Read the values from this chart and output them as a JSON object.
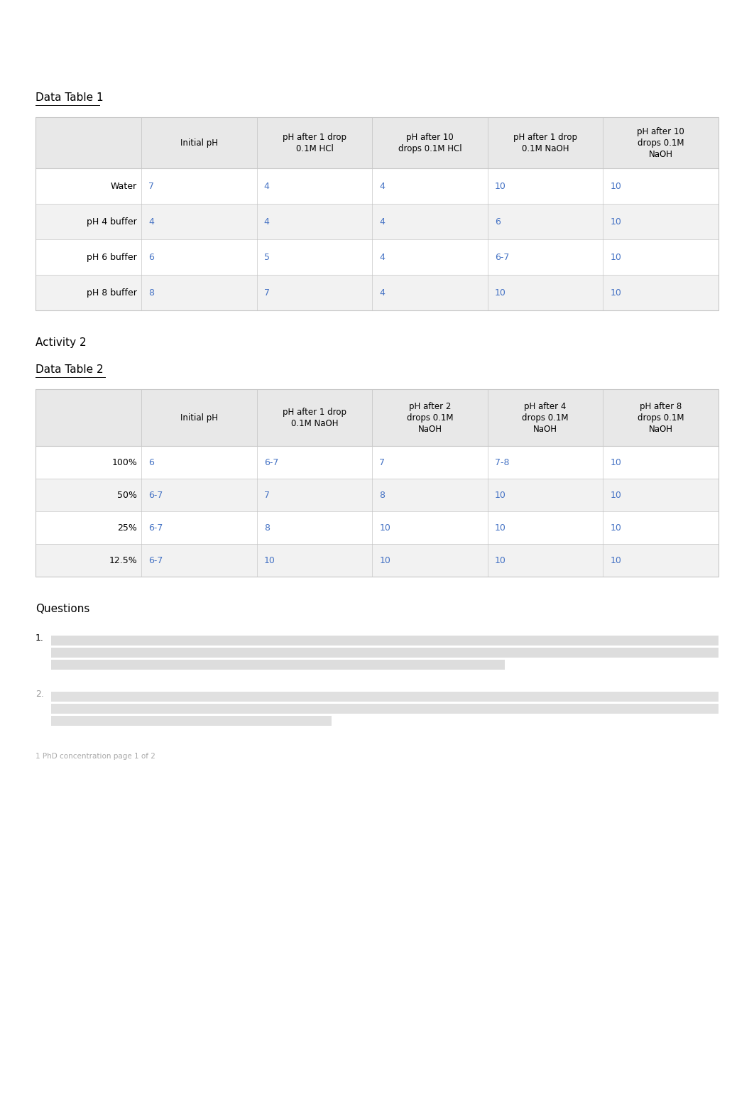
{
  "page_bg": "#ffffff",
  "data_table1_label": "Data Table 1",
  "table1_headers": [
    "",
    "Initial pH",
    "pH after 1 drop\n0.1M HCl",
    "pH after 10\ndrops 0.1M HCl",
    "pH after 1 drop\n0.1M NaOH",
    "pH after 10\ndrops 0.1M\nNaOH"
  ],
  "table1_rows": [
    [
      "Water",
      "7",
      "4",
      "4",
      "10",
      "10"
    ],
    [
      "pH 4 buffer",
      "4",
      "4",
      "4",
      "6",
      "10"
    ],
    [
      "pH 6 buffer",
      "6",
      "5",
      "4",
      "6-7",
      "10"
    ],
    [
      "pH 8 buffer",
      "8",
      "7",
      "4",
      "10",
      "10"
    ]
  ],
  "activity2_label": "Activity 2",
  "data_table2_label": "Data Table 2",
  "table2_headers": [
    "",
    "Initial pH",
    "pH after 1 drop\n0.1M NaOH",
    "pH after 2\ndrops 0.1M\nNaOH",
    "pH after 4\ndrops 0.1M\nNaOH",
    "pH after 8\ndrops 0.1M\nNaOH"
  ],
  "table2_rows": [
    [
      "100%",
      "6",
      "6-7",
      "7",
      "7-8",
      "10"
    ],
    [
      "50%",
      "6-7",
      "7",
      "8",
      "10",
      "10"
    ],
    [
      "25%",
      "6-7",
      "8",
      "10",
      "10",
      "10"
    ],
    [
      "12.5%",
      "6-7",
      "10",
      "10",
      "10",
      "10"
    ]
  ],
  "questions_label": "Questions",
  "q3_text": "1 PhD concentration page 1 of 2",
  "blue_color": "#4472C4",
  "black_color": "#000000",
  "gray_color": "#808080",
  "light_gray_row": "#f2f2f2",
  "white_row": "#ffffff",
  "table_border_color": "#c8c8c8",
  "header_bg": "#e8e8e8",
  "table_bg": "#f0f0f0"
}
